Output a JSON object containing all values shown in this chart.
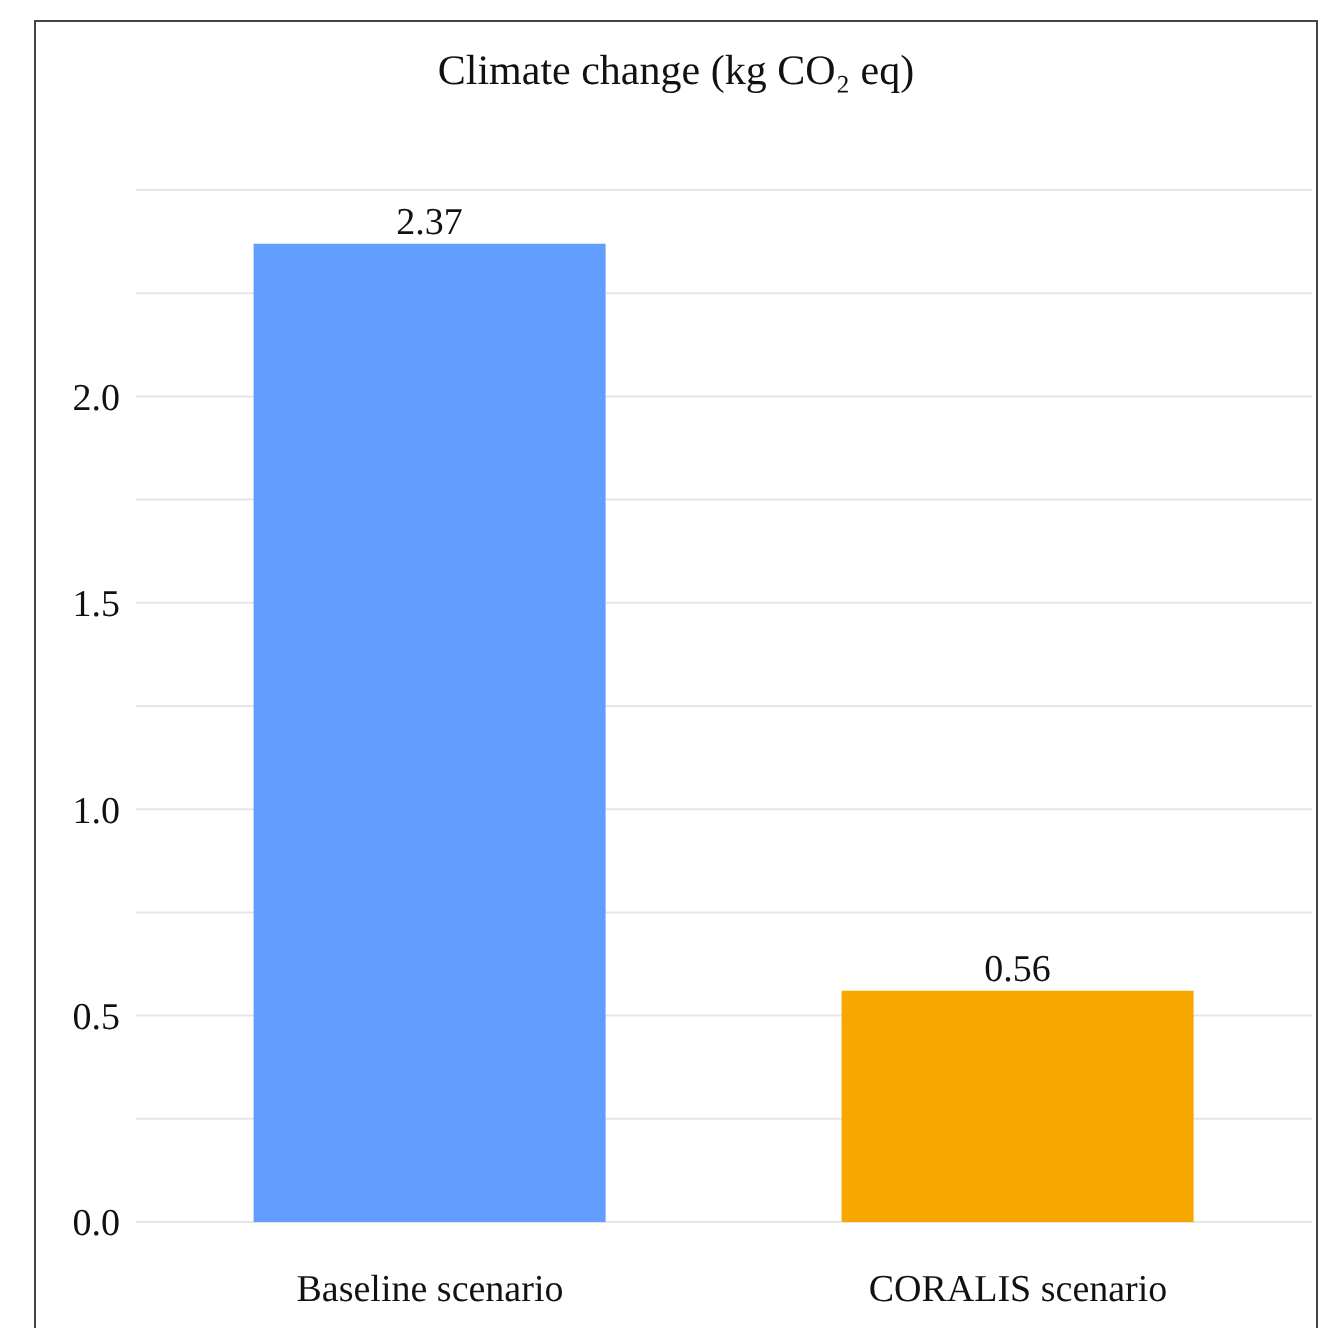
{
  "chart_data": {
    "type": "bar",
    "title": "Climate change (kg CO₂ eq)",
    "categories": [
      "Baseline scenario",
      "CORALIS scenario"
    ],
    "values": [
      2.37,
      0.56
    ],
    "colors": [
      "#619cff",
      "#f8a600"
    ],
    "ylim": [
      0,
      2.5
    ],
    "yticks": [
      {
        "value": 0,
        "label": "0.0"
      },
      {
        "value": 0.25,
        "label": null
      },
      0.5,
      {
        "value": 0.75,
        "label": null
      },
      {
        "value": 1,
        "label": "1.0"
      },
      {
        "value": 1.25,
        "label": null
      },
      1.5,
      {
        "value": 1.75,
        "label": null
      },
      {
        "value": 2,
        "label": "2.0"
      },
      {
        "value": 2.25,
        "label": null
      }
    ],
    "grid": "y",
    "data_labels": true
  }
}
